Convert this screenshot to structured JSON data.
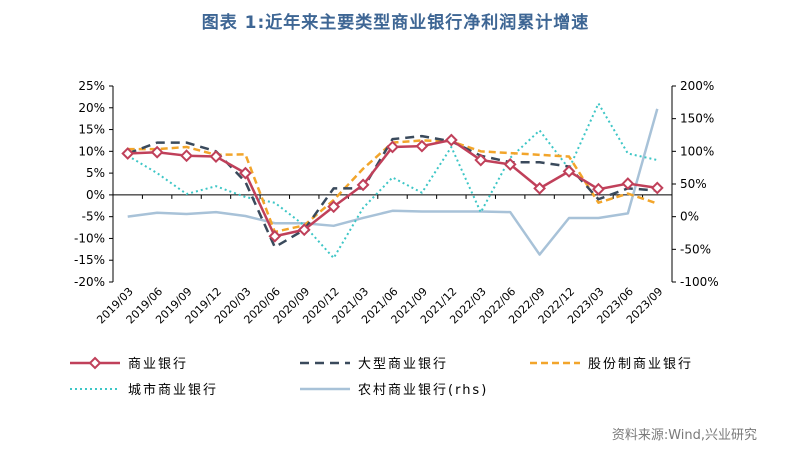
{
  "title": "图表 1:近年来主要类型商业银行净利润累计增速",
  "source": "资料来源:Wind,兴业研究",
  "chart_data": {
    "type": "line",
    "categories": [
      "2019/03",
      "2019/06",
      "2019/09",
      "2019/12",
      "2020/03",
      "2020/06",
      "2020/09",
      "2020/12",
      "2021/03",
      "2021/06",
      "2021/09",
      "2021/12",
      "2022/03",
      "2022/06",
      "2022/09",
      "2022/12",
      "2023/03",
      "2023/06",
      "2023/09"
    ],
    "y_left": {
      "min": -20,
      "max": 25,
      "step": 5,
      "tick_labels": [
        "-20%",
        "-15%",
        "-10%",
        "-5%",
        "0%",
        "5%",
        "10%",
        "15%",
        "20%",
        "25%"
      ]
    },
    "y_right": {
      "min": -100,
      "max": 200,
      "step": 50,
      "tick_labels": [
        "-100%",
        "-50%",
        "0%",
        "50%",
        "100%",
        "150%",
        "200%"
      ]
    },
    "grid": false,
    "legend_position": "bottom",
    "series": [
      {
        "name": "商业银行",
        "axis": "left",
        "color": "#C0405A",
        "style": "solid-marker",
        "values": [
          9.5,
          9.8,
          9.0,
          8.8,
          5.0,
          -9.5,
          -8.0,
          -2.7,
          2.3,
          11.0,
          11.2,
          12.6,
          8.0,
          7.0,
          1.5,
          5.4,
          1.3,
          2.6,
          1.6
        ]
      },
      {
        "name": "大型商业银行",
        "axis": "left",
        "color": "#3A4A5C",
        "style": "dash",
        "values": [
          9.5,
          12.0,
          12.0,
          10.0,
          3.0,
          -12.0,
          -8.0,
          1.5,
          1.5,
          12.8,
          13.5,
          12.3,
          9.0,
          7.5,
          7.5,
          6.5,
          -1.0,
          1.5,
          1.0
        ]
      },
      {
        "name": "股份制商业银行",
        "axis": "left",
        "color": "#F2A52B",
        "style": "dash-short",
        "values": [
          10.5,
          10.5,
          11.0,
          9.2,
          9.3,
          -8.5,
          -7.0,
          -1.2,
          6.0,
          12.0,
          12.5,
          12.3,
          10.0,
          9.6,
          9.2,
          8.8,
          -1.8,
          0.3,
          -2.0
        ]
      },
      {
        "name": "城市商业银行",
        "axis": "left",
        "color": "#3DC6C6",
        "style": "dot",
        "values": [
          9.0,
          5.0,
          0.2,
          2.0,
          -0.5,
          -1.8,
          -7.0,
          -14.5,
          -3.0,
          4.0,
          0.5,
          11.0,
          -4.0,
          8.5,
          14.8,
          6.0,
          21.0,
          9.5,
          8.0
        ]
      },
      {
        "name": "农村商业银行(rhs)",
        "axis": "right",
        "color": "#A8C2D8",
        "style": "solid",
        "values": [
          0,
          6,
          4,
          7,
          1,
          -10,
          -10,
          -14,
          -2,
          9,
          8,
          8,
          8,
          7,
          -58,
          -2,
          -2,
          5,
          165
        ]
      }
    ]
  }
}
